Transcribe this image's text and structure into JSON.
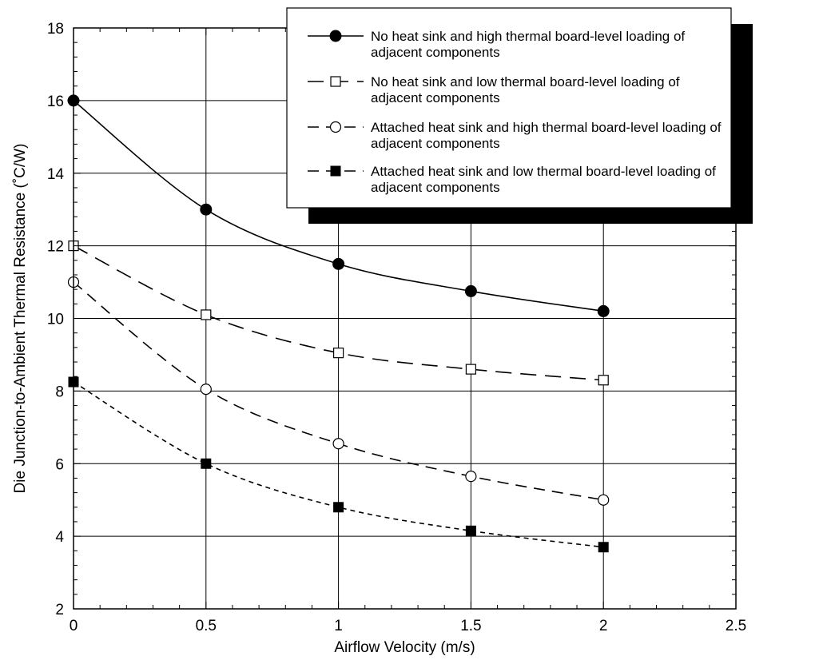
{
  "chart_data": {
    "type": "line",
    "title": "",
    "xlabel": "Airflow Velocity (m/s)",
    "ylabel": "Die Junction-to-Ambient Thermal Resistance (˚C/W)",
    "xlim": [
      0,
      2.5
    ],
    "ylim": [
      2,
      18
    ],
    "x_ticks": [
      "0",
      "0.5",
      "1",
      "1.5",
      "2",
      "2.5"
    ],
    "y_ticks": [
      "2",
      "4",
      "6",
      "8",
      "10",
      "12",
      "14",
      "16",
      "18"
    ],
    "grid": true,
    "legend_position": "top-right",
    "x": [
      0,
      0.5,
      1,
      1.5,
      2
    ],
    "series": [
      {
        "name": "No heat sink and high thermal board-level loading of adjacent components",
        "name_lines": [
          "No heat sink and high thermal board-level loading of",
          "adjacent components"
        ],
        "marker": "filled-circle",
        "line_style": "solid",
        "values": [
          16.0,
          13.0,
          11.5,
          10.75,
          10.2
        ]
      },
      {
        "name": "No heat sink and low thermal board-level loading of adjacent components",
        "name_lines": [
          "No heat sink and low thermal board-level loading of",
          "adjacent components"
        ],
        "marker": "open-square",
        "line_style": "long-dash",
        "values": [
          12.0,
          10.1,
          9.05,
          8.6,
          8.3
        ]
      },
      {
        "name": "Attached heat sink and high thermal board-level loading of adjacent components",
        "name_lines": [
          "Attached heat sink and high thermal board-level loading of",
          "adjacent components"
        ],
        "marker": "open-circle",
        "line_style": "dash",
        "values": [
          11.0,
          8.05,
          6.55,
          5.65,
          5.0
        ]
      },
      {
        "name": "Attached heat sink and low thermal board-level loading of adjacent components",
        "name_lines": [
          "Attached heat sink and low thermal board-level loading of",
          "adjacent components"
        ],
        "marker": "filled-square",
        "line_style": "short-dash",
        "values": [
          8.25,
          6.0,
          4.8,
          4.15,
          3.7
        ]
      }
    ]
  }
}
